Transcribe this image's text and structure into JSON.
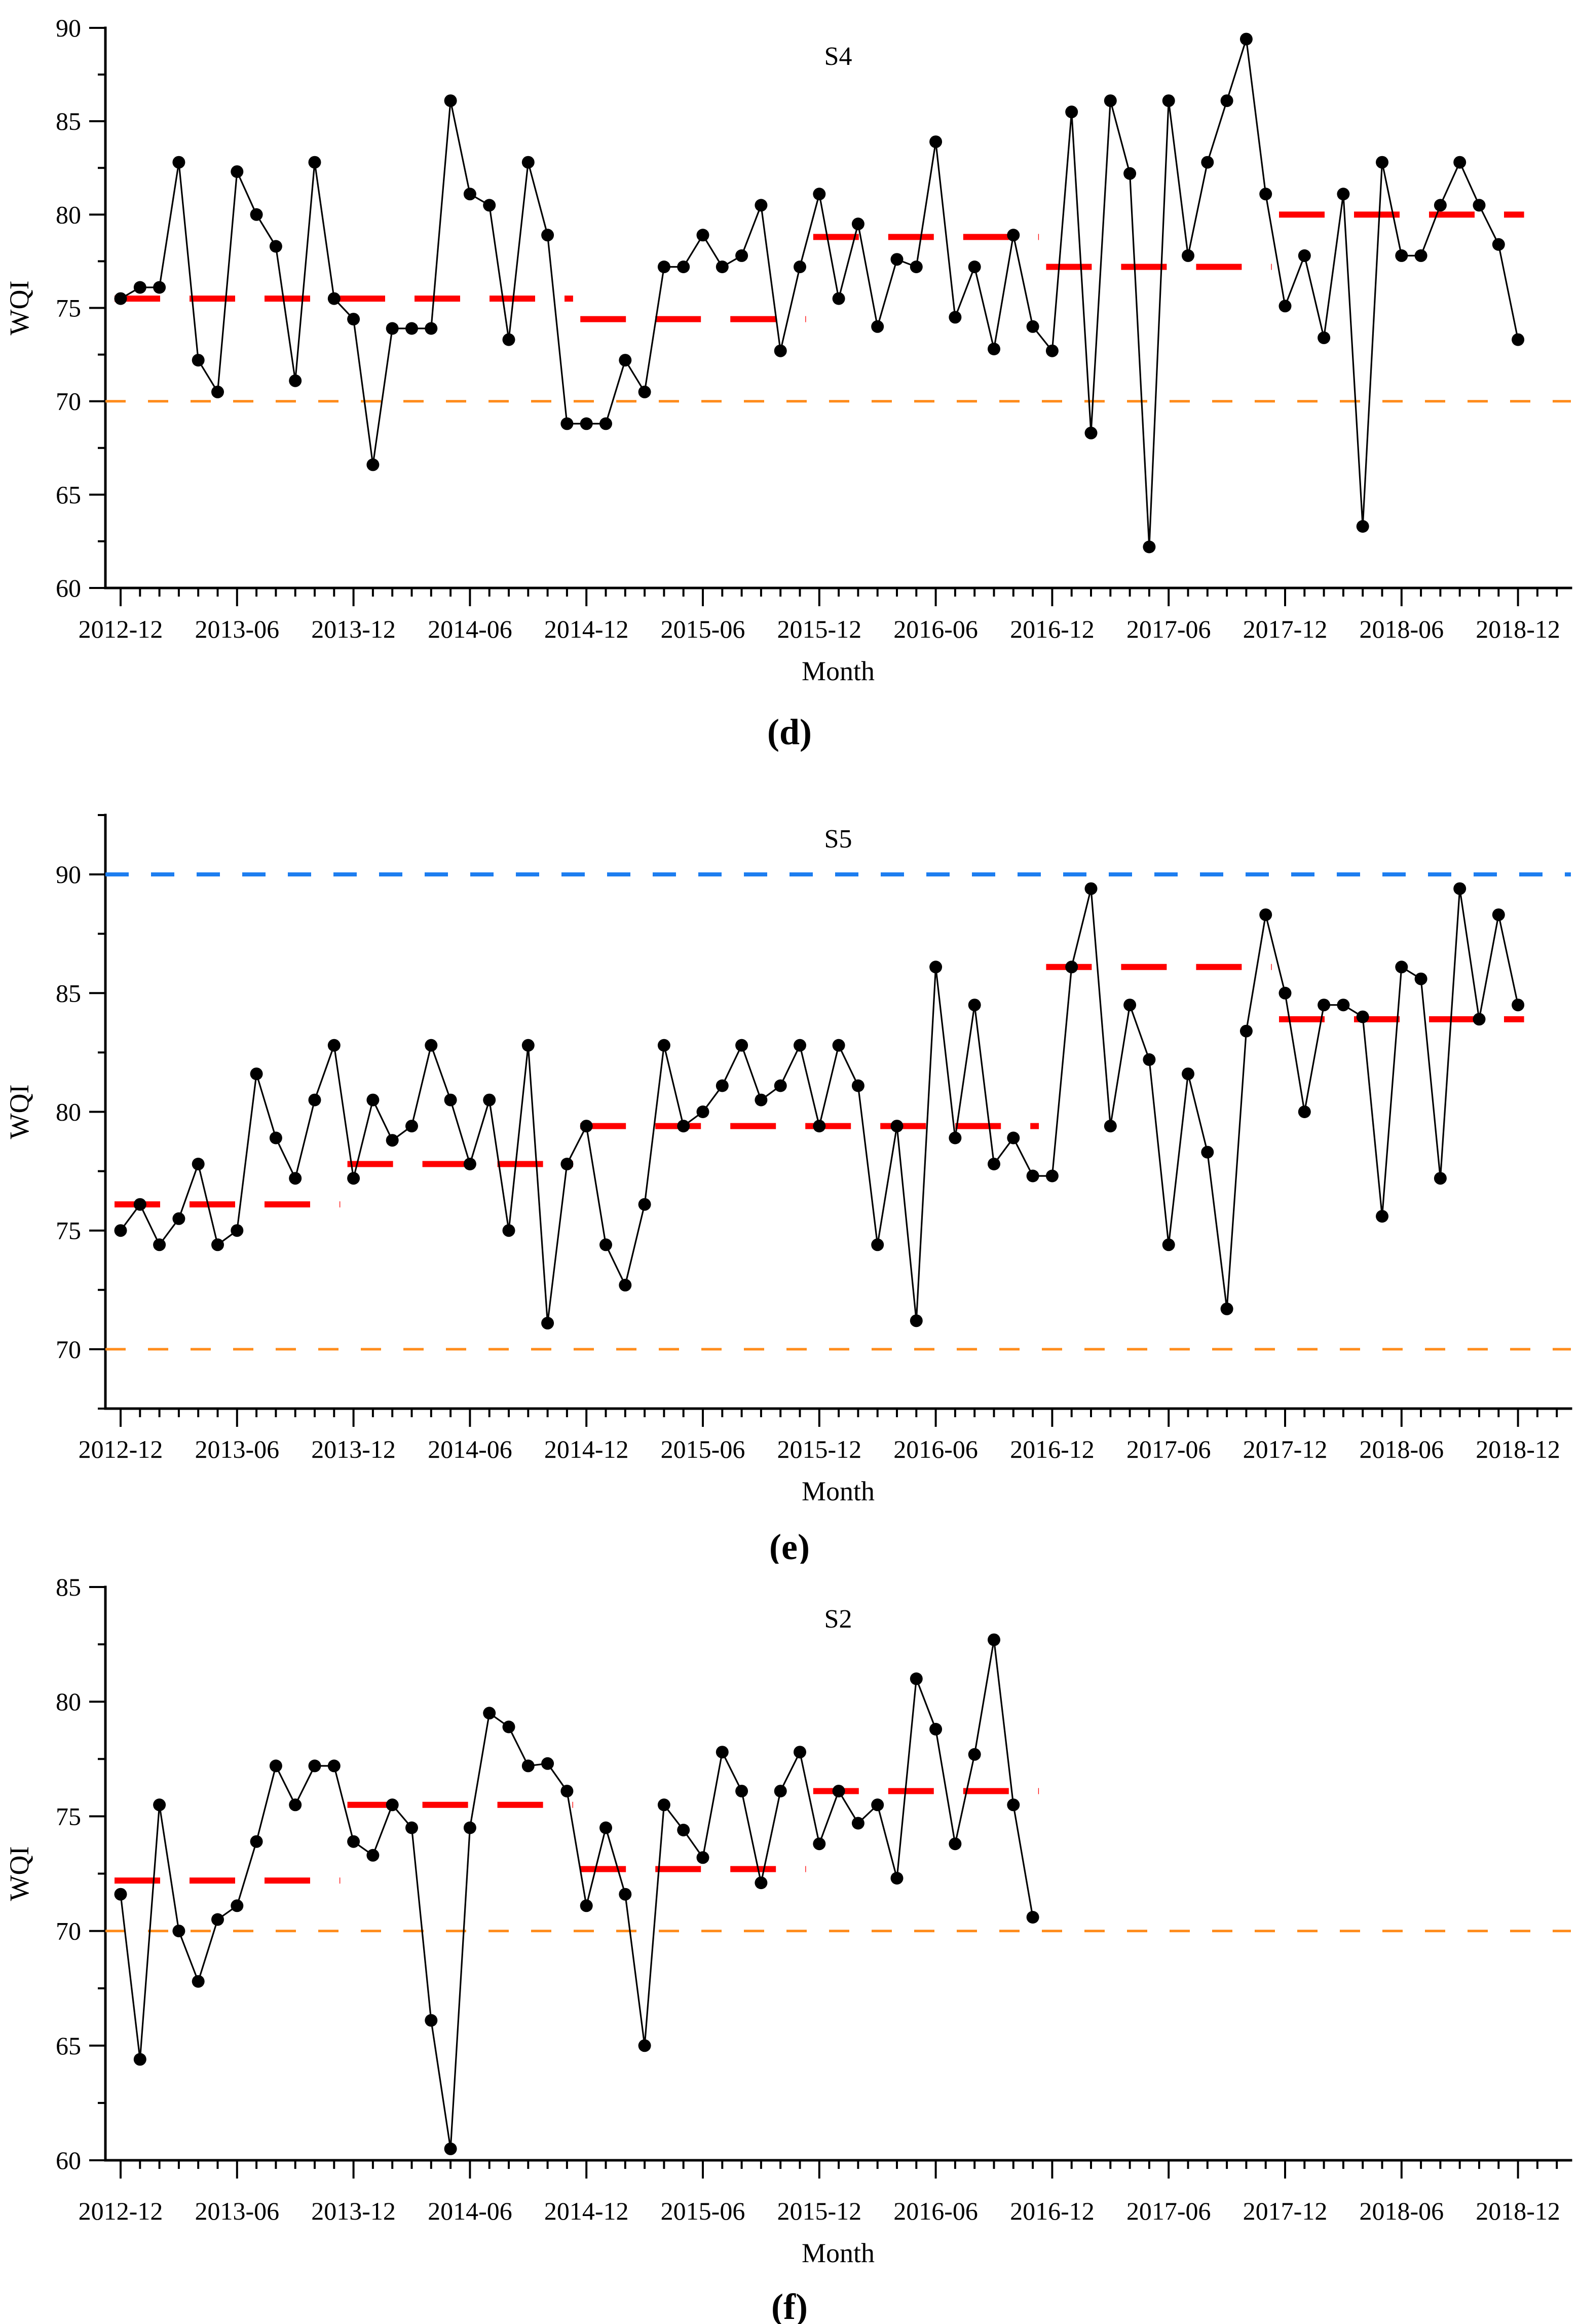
{
  "figure": {
    "xlabel": "Month",
    "ylabel": "WQI",
    "x_tick_labels": [
      "2012-12",
      "2013-06",
      "2013-12",
      "2014-06",
      "2014-12",
      "2015-06",
      "2015-12",
      "2016-06",
      "2016-12",
      "2017-06",
      "2017-12",
      "2018-06",
      "2018-12"
    ],
    "months_between_labeled_ticks": 6,
    "total_month_slots": 73,
    "colors": {
      "series_line": "#000000",
      "data_point": "#000000",
      "mean_segment": "#ff0000",
      "threshold_line": "#ff8c1c",
      "upper_limit_line": "#1c7df0",
      "axis": "#000000"
    }
  },
  "chart_data": [
    {
      "type": "line",
      "title": "S4",
      "panel_label": "(d)",
      "xlabel": "Month",
      "ylabel": "WQI",
      "start_month": "2012-12",
      "y_axis_range": [
        60,
        90
      ],
      "y_tick_labels": [
        "60",
        "65",
        "70",
        "75",
        "80",
        "85",
        "90"
      ],
      "y_tick_values": [
        60,
        65,
        70,
        75,
        80,
        85,
        90
      ],
      "y_minor_step": 2.5,
      "grid": false,
      "threshold_value": 70,
      "upper_limit_value": null,
      "values": [
        75.5,
        76.1,
        76.1,
        82.8,
        72.2,
        70.5,
        82.3,
        80.0,
        78.3,
        71.1,
        82.8,
        75.5,
        74.4,
        66.6,
        73.9,
        73.9,
        73.9,
        86.1,
        81.1,
        80.5,
        73.3,
        82.8,
        78.9,
        68.8,
        68.8,
        68.8,
        72.2,
        70.5,
        77.2,
        77.2,
        78.9,
        77.2,
        77.8,
        80.5,
        72.7,
        77.2,
        81.1,
        75.5,
        79.5,
        74.0,
        77.6,
        77.2,
        83.9,
        74.5,
        77.2,
        72.8,
        78.9,
        74.0,
        72.7,
        85.5,
        68.3,
        86.1,
        82.2,
        62.2,
        86.1,
        77.8,
        82.8,
        86.1,
        89.4,
        81.1,
        75.1,
        77.8,
        73.4,
        81.1,
        63.3,
        82.8,
        77.8,
        77.8,
        80.5,
        82.8,
        80.5,
        78.4,
        73.3
      ],
      "mean_segments": [
        {
          "from_month_index": 0,
          "to_month_index": 23,
          "value": 75.5,
          "period": "2012-12 to 2014-11"
        },
        {
          "from_month_index": 24,
          "to_month_index": 35,
          "value": 74.4,
          "period": "2014-12 to 2015-11"
        },
        {
          "from_month_index": 36,
          "to_month_index": 47,
          "value": 78.8,
          "period": "2015-12 to 2016-11"
        },
        {
          "from_month_index": 48,
          "to_month_index": 59,
          "value": 77.2,
          "period": "2016-12 to 2017-11"
        },
        {
          "from_month_index": 60,
          "to_month_index": 72,
          "value": 80.0,
          "period": "2017-12 to 2018-12"
        }
      ]
    },
    {
      "type": "line",
      "title": "S5",
      "panel_label": "(e)",
      "xlabel": "Month",
      "ylabel": "WQI",
      "start_month": "2012-12",
      "y_axis_range": [
        67.5,
        92.5
      ],
      "y_tick_labels": [
        "70",
        "75",
        "80",
        "85",
        "90"
      ],
      "y_tick_values": [
        70,
        75,
        80,
        85,
        90
      ],
      "y_minor_step": 2.5,
      "grid": false,
      "threshold_value": 70,
      "upper_limit_value": 90,
      "values": [
        75.0,
        76.1,
        74.4,
        75.5,
        77.8,
        74.4,
        75.0,
        81.6,
        78.9,
        77.2,
        80.5,
        82.8,
        77.2,
        80.5,
        78.8,
        79.4,
        82.8,
        80.5,
        77.8,
        80.5,
        75.0,
        82.8,
        71.1,
        77.8,
        79.4,
        74.4,
        72.7,
        76.1,
        82.8,
        79.4,
        80.0,
        81.1,
        82.8,
        80.5,
        81.1,
        82.8,
        79.4,
        82.8,
        81.1,
        74.4,
        79.4,
        71.2,
        86.1,
        78.9,
        84.5,
        77.8,
        78.9,
        77.3,
        77.3,
        86.1,
        89.4,
        79.4,
        84.5,
        82.2,
        74.4,
        81.6,
        78.3,
        71.7,
        83.4,
        88.3,
        85.0,
        80.0,
        84.5,
        84.5,
        84.0,
        75.6,
        86.1,
        85.6,
        77.2,
        89.4,
        83.9,
        88.3,
        84.5
      ],
      "mean_segments": [
        {
          "from_month_index": 0,
          "to_month_index": 11,
          "value": 76.1,
          "period": "2012-12 to 2013-11"
        },
        {
          "from_month_index": 12,
          "to_month_index": 23,
          "value": 77.8,
          "period": "2013-12 to 2014-11"
        },
        {
          "from_month_index": 24,
          "to_month_index": 47,
          "value": 79.4,
          "period": "2014-12 to 2016-11"
        },
        {
          "from_month_index": 48,
          "to_month_index": 59,
          "value": 86.1,
          "period": "2016-12 to 2017-11"
        },
        {
          "from_month_index": 60,
          "to_month_index": 72,
          "value": 83.9,
          "period": "2017-12 to 2018-12"
        }
      ]
    },
    {
      "type": "line",
      "title": "S2",
      "panel_label": "(f)",
      "xlabel": "Month",
      "ylabel": "WQI",
      "start_month": "2012-12",
      "y_axis_range": [
        60,
        85
      ],
      "y_tick_labels": [
        "60",
        "65",
        "70",
        "75",
        "80",
        "85"
      ],
      "y_tick_values": [
        60,
        65,
        70,
        75,
        80,
        85
      ],
      "y_minor_step": 2.5,
      "grid": false,
      "threshold_value": 70,
      "upper_limit_value": null,
      "values": [
        71.6,
        64.4,
        75.5,
        70.0,
        67.8,
        70.5,
        71.1,
        73.9,
        77.2,
        75.5,
        77.2,
        77.2,
        73.9,
        73.3,
        75.5,
        74.5,
        66.1,
        60.5,
        74.5,
        79.5,
        78.9,
        77.2,
        77.3,
        76.1,
        71.1,
        74.5,
        71.6,
        65.0,
        75.5,
        74.4,
        73.2,
        77.8,
        76.1,
        72.1,
        76.1,
        77.8,
        73.8,
        76.1,
        74.7,
        75.5,
        72.3,
        81.0,
        78.8,
        73.8,
        77.7,
        82.7,
        75.5,
        70.6
      ],
      "mean_segments": [
        {
          "from_month_index": 0,
          "to_month_index": 11,
          "value": 72.2,
          "period": "2012-12 to 2013-11"
        },
        {
          "from_month_index": 12,
          "to_month_index": 23,
          "value": 75.5,
          "period": "2013-12 to 2014-11"
        },
        {
          "from_month_index": 24,
          "to_month_index": 35,
          "value": 72.7,
          "period": "2014-12 to 2015-11"
        },
        {
          "from_month_index": 36,
          "to_month_index": 47,
          "value": 76.1,
          "period": "2015-12 to 2016-11"
        }
      ]
    }
  ]
}
